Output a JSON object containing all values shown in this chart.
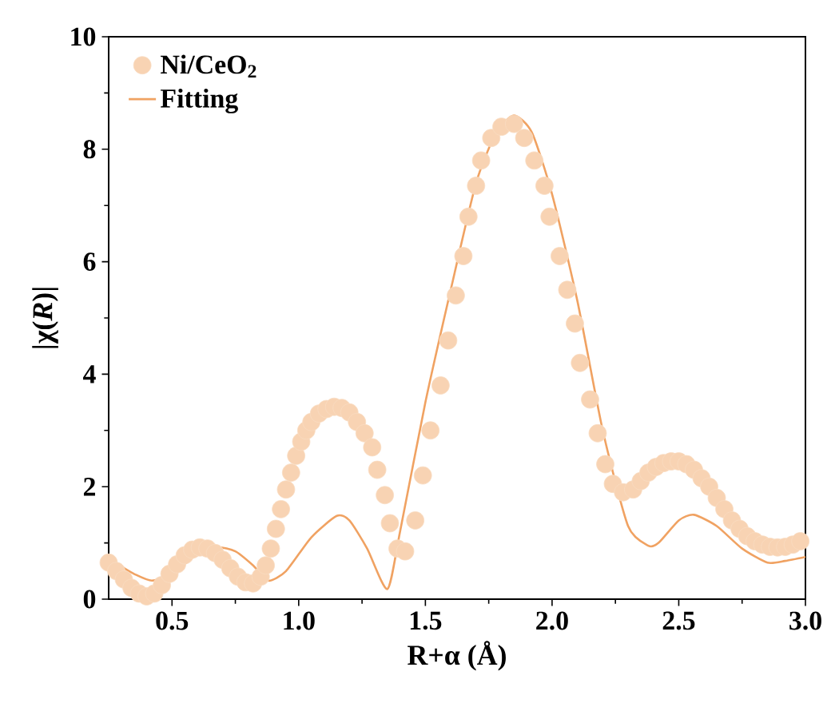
{
  "chart_data": {
    "type": "scatter",
    "xlabel": "R+α (Å)",
    "ylabel": "|χ(*R*)|",
    "xlim": [
      0.25,
      3.0
    ],
    "ylim": [
      0,
      10
    ],
    "xticks": [
      {
        "value": 0.5,
        "label": "0.5"
      },
      {
        "value": 1.0,
        "label": "1.0"
      },
      {
        "value": 1.5,
        "label": "1.5"
      },
      {
        "value": 2.0,
        "label": "2.0"
      },
      {
        "value": 2.5,
        "label": "2.5"
      },
      {
        "value": 3.0,
        "label": "3.0"
      }
    ],
    "yticks": [
      0,
      2,
      4,
      6,
      8,
      10
    ],
    "legend": "top left",
    "grid": false,
    "series": [
      {
        "name": "Ni/CeO$_{2}$",
        "marker": "circle",
        "color": "#f8d3b3",
        "x": [
          0.25,
          0.28,
          0.31,
          0.34,
          0.37,
          0.4,
          0.43,
          0.46,
          0.49,
          0.52,
          0.55,
          0.58,
          0.61,
          0.64,
          0.67,
          0.7,
          0.73,
          0.76,
          0.79,
          0.82,
          0.85,
          0.87,
          0.89,
          0.91,
          0.93,
          0.95,
          0.97,
          0.99,
          1.01,
          1.03,
          1.05,
          1.08,
          1.11,
          1.14,
          1.17,
          1.2,
          1.23,
          1.26,
          1.29,
          1.31,
          1.34,
          1.36,
          1.39,
          1.42,
          1.46,
          1.49,
          1.52,
          1.56,
          1.59,
          1.62,
          1.65,
          1.67,
          1.7,
          1.72,
          1.76,
          1.8,
          1.85,
          1.89,
          1.93,
          1.97,
          1.99,
          2.03,
          2.06,
          2.09,
          2.11,
          2.15,
          2.18,
          2.21,
          2.24,
          2.28,
          2.32,
          2.35,
          2.38,
          2.41,
          2.44,
          2.47,
          2.5,
          2.53,
          2.56,
          2.59,
          2.62,
          2.65,
          2.68,
          2.71,
          2.74,
          2.77,
          2.8,
          2.83,
          2.86,
          2.89,
          2.92,
          2.95,
          2.98
        ],
        "values": [
          0.65,
          0.5,
          0.35,
          0.2,
          0.1,
          0.05,
          0.1,
          0.25,
          0.45,
          0.62,
          0.78,
          0.88,
          0.92,
          0.9,
          0.82,
          0.7,
          0.55,
          0.4,
          0.3,
          0.28,
          0.4,
          0.6,
          0.9,
          1.25,
          1.6,
          1.95,
          2.25,
          2.55,
          2.8,
          3.0,
          3.15,
          3.3,
          3.38,
          3.42,
          3.4,
          3.32,
          3.15,
          2.95,
          2.7,
          2.3,
          1.85,
          1.35,
          0.9,
          0.85,
          1.4,
          2.2,
          3.0,
          3.8,
          4.6,
          5.4,
          6.1,
          6.8,
          7.35,
          7.8,
          8.2,
          8.4,
          8.45,
          8.2,
          7.8,
          7.35,
          6.8,
          6.1,
          5.5,
          4.9,
          4.2,
          3.55,
          2.95,
          2.4,
          2.05,
          1.9,
          1.95,
          2.1,
          2.25,
          2.35,
          2.42,
          2.45,
          2.45,
          2.4,
          2.3,
          2.15,
          2.0,
          1.8,
          1.6,
          1.4,
          1.25,
          1.12,
          1.03,
          0.97,
          0.93,
          0.92,
          0.93,
          0.97,
          1.03
        ]
      },
      {
        "name": "Fitting",
        "type": "line",
        "marker": "none",
        "line_style": "solid",
        "color": "#f0a262",
        "x": [
          0.25,
          0.3,
          0.35,
          0.42,
          0.5,
          0.6,
          0.68,
          0.75,
          0.82,
          0.88,
          0.95,
          1.05,
          1.15,
          1.2,
          1.27,
          1.35,
          1.4,
          1.5,
          1.6,
          1.7,
          1.78,
          1.85,
          1.92,
          2.0,
          2.1,
          2.2,
          2.3,
          2.38,
          2.42,
          2.5,
          2.56,
          2.65,
          2.75,
          2.85,
          2.92,
          3.0
        ],
        "values": [
          0.7,
          0.58,
          0.45,
          0.33,
          0.45,
          0.8,
          0.92,
          0.85,
          0.6,
          0.33,
          0.5,
          1.1,
          1.48,
          1.4,
          0.9,
          0.18,
          1.2,
          3.5,
          5.5,
          7.4,
          8.3,
          8.6,
          8.3,
          7.2,
          5.3,
          3.0,
          1.3,
          0.95,
          1.0,
          1.4,
          1.5,
          1.3,
          0.9,
          0.65,
          0.68,
          0.75
        ]
      }
    ]
  }
}
